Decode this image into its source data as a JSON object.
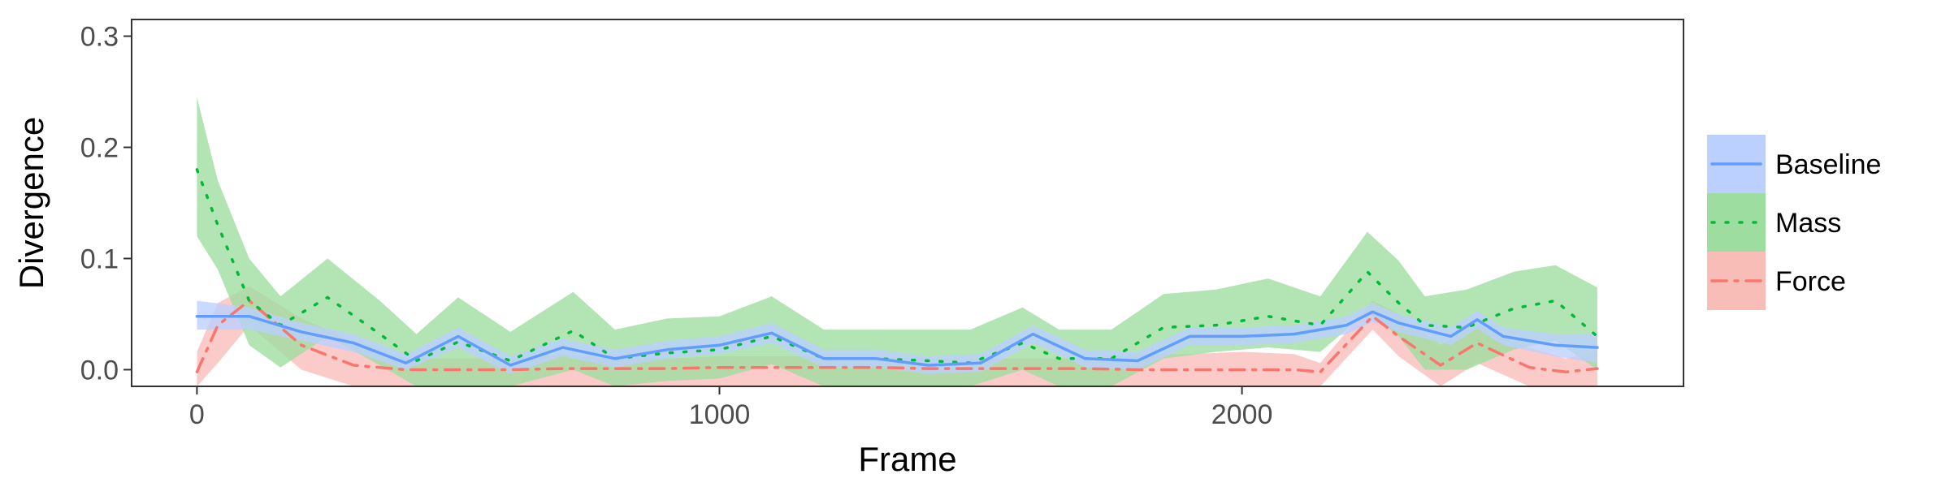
{
  "chart_data": {
    "type": "line",
    "title": "",
    "xlabel": "Frame",
    "ylabel": "Divergence",
    "xlim": [
      -125,
      2845
    ],
    "ylim": [
      -0.015,
      0.315
    ],
    "x_ticks": [
      0,
      1000,
      2000
    ],
    "x_tick_labels": [
      "0",
      "1000",
      "2000"
    ],
    "y_ticks": [
      0.0,
      0.1,
      0.2,
      0.3
    ],
    "y_tick_labels": [
      "0.0",
      "0.1",
      "0.2",
      "0.3"
    ],
    "grid": false,
    "legend_position": "right",
    "series": [
      {
        "name": "Baseline",
        "color": "#619CFF",
        "band_color": "#BBD0FF",
        "line_style": "solid",
        "x": [
          0,
          100,
          200,
          300,
          400,
          500,
          600,
          700,
          800,
          900,
          1000,
          1100,
          1200,
          1300,
          1400,
          1500,
          1600,
          1700,
          1800,
          1900,
          2000,
          2100,
          2200,
          2250,
          2300,
          2400,
          2450,
          2500,
          2600,
          2680
        ],
        "y": [
          0.048,
          0.048,
          0.034,
          0.024,
          0.006,
          0.03,
          0.004,
          0.02,
          0.01,
          0.018,
          0.022,
          0.033,
          0.01,
          0.01,
          0.004,
          0.006,
          0.032,
          0.01,
          0.008,
          0.03,
          0.03,
          0.032,
          0.04,
          0.052,
          0.042,
          0.03,
          0.045,
          0.03,
          0.022,
          0.02
        ],
        "lower": [
          0.036,
          0.036,
          0.026,
          0.016,
          0.0,
          0.02,
          -0.004,
          0.012,
          0.002,
          0.01,
          0.014,
          0.024,
          0.002,
          0.002,
          -0.004,
          -0.002,
          0.024,
          0.002,
          0.0,
          0.022,
          0.022,
          0.024,
          0.032,
          0.043,
          0.034,
          0.022,
          0.037,
          0.022,
          0.012,
          0.006
        ],
        "upper": [
          0.062,
          0.056,
          0.042,
          0.032,
          0.014,
          0.038,
          0.012,
          0.028,
          0.018,
          0.026,
          0.03,
          0.042,
          0.018,
          0.018,
          0.012,
          0.014,
          0.04,
          0.018,
          0.016,
          0.038,
          0.038,
          0.04,
          0.048,
          0.06,
          0.05,
          0.038,
          0.053,
          0.038,
          0.032,
          0.032
        ]
      },
      {
        "name": "Mass",
        "color": "#00BA38",
        "band_color": "#9DDD9F",
        "line_style": "dotted",
        "x": [
          0,
          40,
          100,
          160,
          250,
          350,
          420,
          500,
          600,
          720,
          800,
          900,
          1000,
          1100,
          1200,
          1300,
          1400,
          1480,
          1580,
          1650,
          1750,
          1850,
          1950,
          2050,
          2150,
          2240,
          2300,
          2350,
          2430,
          2520,
          2600,
          2680
        ],
        "y": [
          0.18,
          0.13,
          0.062,
          0.04,
          0.065,
          0.032,
          0.008,
          0.025,
          0.008,
          0.035,
          0.01,
          0.015,
          0.018,
          0.03,
          0.01,
          0.01,
          0.008,
          0.006,
          0.024,
          0.01,
          0.01,
          0.038,
          0.04,
          0.048,
          0.04,
          0.088,
          0.06,
          0.04,
          0.038,
          0.055,
          0.062,
          0.03
        ],
        "lower": [
          0.12,
          0.09,
          0.022,
          0.002,
          0.03,
          0.004,
          -0.015,
          -0.015,
          -0.015,
          0.0,
          -0.015,
          -0.01,
          -0.008,
          0.005,
          -0.015,
          -0.015,
          -0.015,
          -0.015,
          0.0,
          -0.015,
          -0.015,
          0.01,
          0.016,
          0.02,
          0.016,
          0.052,
          0.03,
          0.0,
          0.0,
          0.018,
          0.026,
          0.0
        ],
        "upper": [
          0.245,
          0.17,
          0.1,
          0.066,
          0.1,
          0.062,
          0.032,
          0.065,
          0.034,
          0.07,
          0.036,
          0.046,
          0.048,
          0.066,
          0.036,
          0.036,
          0.036,
          0.036,
          0.056,
          0.036,
          0.036,
          0.068,
          0.072,
          0.082,
          0.066,
          0.124,
          0.098,
          0.066,
          0.072,
          0.088,
          0.094,
          0.074
        ]
      },
      {
        "name": "Force",
        "color": "#F8766D",
        "band_color": "#F9BDB8",
        "line_style": "dashdot",
        "x": [
          0,
          40,
          100,
          200,
          300,
          400,
          500,
          600,
          700,
          800,
          900,
          1000,
          1100,
          1200,
          1300,
          1400,
          1500,
          1600,
          1700,
          1800,
          1900,
          2000,
          2100,
          2150,
          2250,
          2300,
          2380,
          2450,
          2550,
          2620,
          2680
        ],
        "y": [
          -0.002,
          0.04,
          0.062,
          0.022,
          0.004,
          0.0,
          0.0,
          0.0,
          0.001,
          0.001,
          0.001,
          0.002,
          0.002,
          0.002,
          0.002,
          0.001,
          0.001,
          0.001,
          0.001,
          0.0,
          0.0,
          0.0,
          0.0,
          -0.002,
          0.048,
          0.03,
          0.004,
          0.024,
          0.002,
          -0.002,
          0.001
        ],
        "lower": [
          -0.015,
          0.006,
          0.04,
          0.0,
          -0.015,
          -0.015,
          -0.015,
          -0.015,
          -0.015,
          -0.015,
          -0.015,
          -0.015,
          -0.015,
          -0.015,
          -0.015,
          -0.015,
          -0.015,
          -0.015,
          -0.015,
          -0.015,
          -0.015,
          -0.015,
          -0.015,
          -0.015,
          0.036,
          0.012,
          -0.015,
          0.006,
          -0.015,
          -0.015,
          -0.015
        ],
        "upper": [
          0.016,
          0.06,
          0.075,
          0.046,
          0.026,
          0.01,
          0.01,
          0.01,
          0.014,
          0.01,
          0.01,
          0.012,
          0.012,
          0.012,
          0.012,
          0.01,
          0.01,
          0.01,
          0.01,
          0.014,
          0.014,
          0.016,
          0.014,
          0.006,
          0.062,
          0.05,
          0.022,
          0.04,
          0.02,
          0.01,
          0.016
        ]
      }
    ]
  }
}
